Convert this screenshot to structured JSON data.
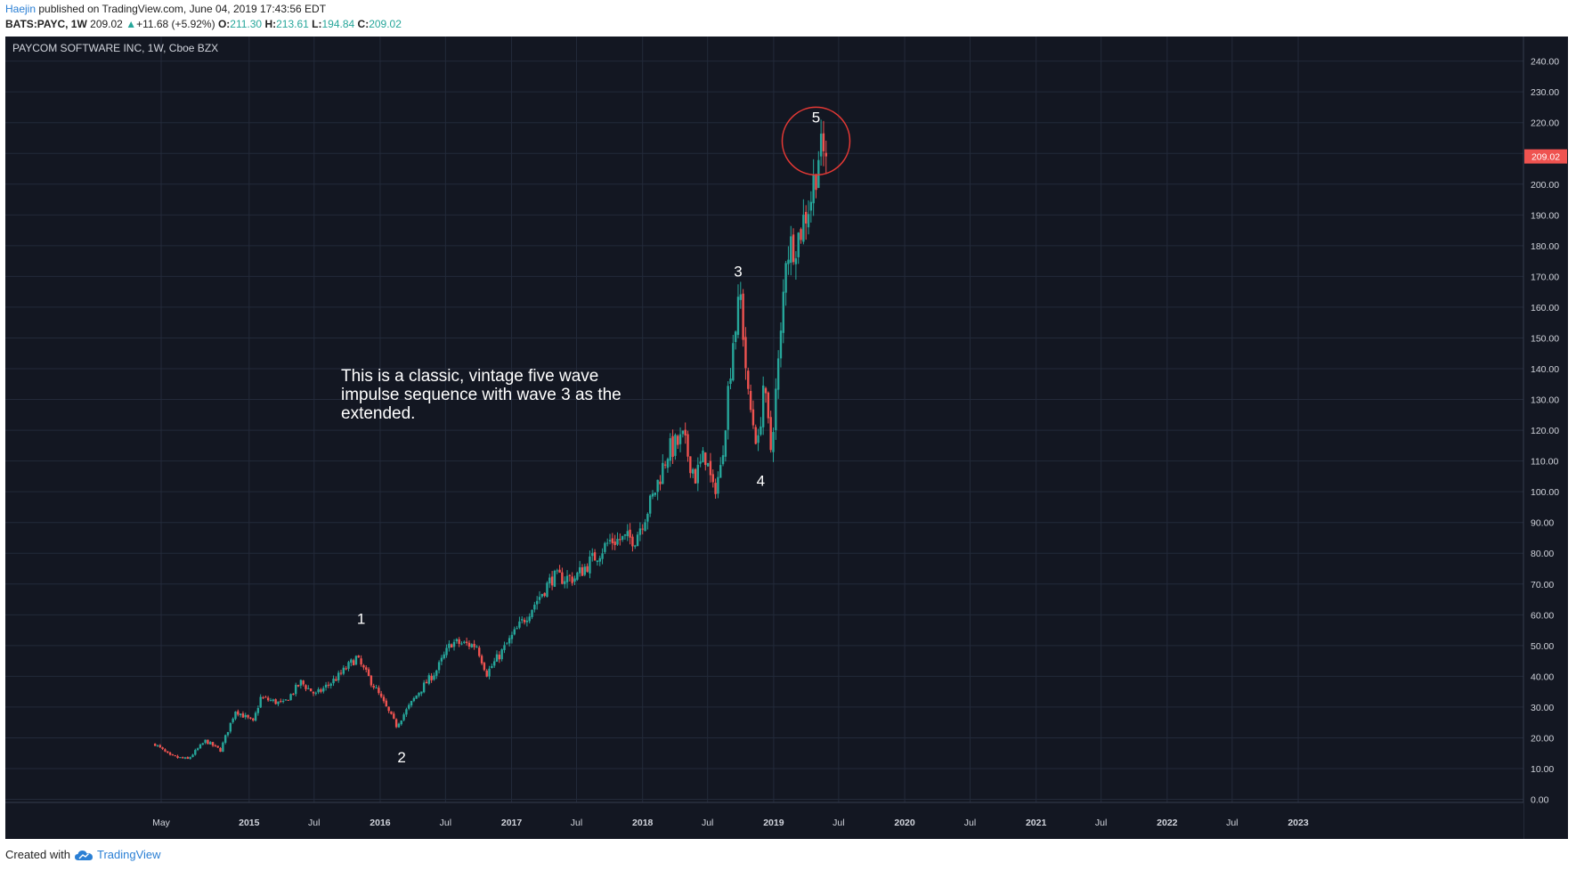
{
  "header": {
    "author": "Haejin",
    "published_text": "published on TradingView.com, June 04, 2019 17:43:56 EDT",
    "symbol": "BATS:PAYC, 1W",
    "last": "209.02",
    "change": "+11.68 (+5.92%)",
    "open_label": "O:",
    "open": "211.30",
    "high_label": "H:",
    "high": "213.61",
    "low_label": "L:",
    "low": "194.84",
    "close_label": "C:",
    "close": "209.02"
  },
  "footer": {
    "created_with": "Created with",
    "brand": "TradingView"
  },
  "colors": {
    "background": "#131722",
    "grid": "#232a3a",
    "up": "#26a69a",
    "down": "#ef5350",
    "text": "#d1d4dc",
    "circle": "#e53935"
  },
  "chart_data": {
    "type": "candlestick",
    "title": "PAYCOM SOFTWARE INC, 1W, Cboe BZX",
    "ylim": [
      -1,
      248
    ],
    "y_ticks": [
      0,
      10,
      20,
      30,
      40,
      50,
      60,
      70,
      80,
      90,
      100,
      110,
      120,
      130,
      140,
      150,
      160,
      170,
      180,
      190,
      200,
      210,
      220,
      230,
      240
    ],
    "y_tick_labels": [
      "0.00",
      "10.00",
      "20.00",
      "30.00",
      "40.00",
      "50.00",
      "60.00",
      "70.00",
      "80.00",
      "90.00",
      "100.00",
      "110.00",
      "120.00",
      "130.00",
      "140.00",
      "150.00",
      "160.00",
      "170.00",
      "180.00",
      "190.00",
      "200.00",
      "210.00",
      "220.00",
      "230.00",
      "240.00"
    ],
    "x_ticks": [
      {
        "label": "May",
        "date": "2014-05-01"
      },
      {
        "label": "2015",
        "date": "2015-01-01"
      },
      {
        "label": "Jul",
        "date": "2015-07-01"
      },
      {
        "label": "2016",
        "date": "2016-01-01"
      },
      {
        "label": "Jul",
        "date": "2016-07-01"
      },
      {
        "label": "2017",
        "date": "2017-01-01"
      },
      {
        "label": "Jul",
        "date": "2017-07-01"
      },
      {
        "label": "2018",
        "date": "2018-01-01"
      },
      {
        "label": "Jul",
        "date": "2018-07-01"
      },
      {
        "label": "2019",
        "date": "2019-01-01"
      },
      {
        "label": "Jul",
        "date": "2019-07-01"
      },
      {
        "label": "2020",
        "date": "2020-01-01"
      },
      {
        "label": "Jul",
        "date": "2020-07-01"
      },
      {
        "label": "2021",
        "date": "2021-01-01"
      },
      {
        "label": "Jul",
        "date": "2021-07-01"
      },
      {
        "label": "2022",
        "date": "2022-01-01"
      },
      {
        "label": "Jul",
        "date": "2022-07-01"
      },
      {
        "label": "2023",
        "date": "2023-01-01"
      }
    ],
    "last_price_label": "209.02",
    "last_price": 209.02,
    "price_path": [
      [
        "2014-04-14",
        18
      ],
      [
        "2014-05-26",
        14
      ],
      [
        "2014-07-14",
        13
      ],
      [
        "2014-09-01",
        19
      ],
      [
        "2014-10-13",
        16
      ],
      [
        "2014-11-24",
        29
      ],
      [
        "2015-01-12",
        25
      ],
      [
        "2015-02-02",
        33
      ],
      [
        "2015-04-06",
        31
      ],
      [
        "2015-05-25",
        38
      ],
      [
        "2015-07-06",
        34
      ],
      [
        "2015-09-07",
        40
      ],
      [
        "2015-10-26",
        46
      ],
      [
        "2015-12-14",
        37
      ],
      [
        "2016-02-15",
        24
      ],
      [
        "2016-04-18",
        35
      ],
      [
        "2016-06-06",
        42
      ],
      [
        "2016-07-18",
        51
      ],
      [
        "2016-09-26",
        50
      ],
      [
        "2016-10-24",
        41
      ],
      [
        "2016-12-05",
        48
      ],
      [
        "2017-02-13",
        60
      ],
      [
        "2017-04-24",
        72
      ],
      [
        "2017-06-26",
        72
      ],
      [
        "2017-10-02",
        84
      ],
      [
        "2017-12-11",
        85
      ],
      [
        "2018-01-29",
        98
      ],
      [
        "2018-03-12",
        113
      ],
      [
        "2018-04-23",
        117
      ],
      [
        "2018-05-28",
        105
      ],
      [
        "2018-06-25",
        112
      ],
      [
        "2018-07-16",
        100
      ],
      [
        "2018-08-06",
        107
      ],
      [
        "2018-09-10",
        150
      ],
      [
        "2018-10-01",
        163
      ],
      [
        "2018-10-22",
        130
      ],
      [
        "2018-11-19",
        115
      ],
      [
        "2018-12-03",
        135
      ],
      [
        "2018-12-24",
        114
      ],
      [
        "2019-01-21",
        150
      ],
      [
        "2019-02-04",
        178
      ],
      [
        "2019-03-11",
        183
      ],
      [
        "2019-04-15",
        196
      ],
      [
        "2019-05-06",
        210
      ],
      [
        "2019-05-27",
        209.02
      ]
    ],
    "wave_labels": [
      {
        "label": "1",
        "date": "2015-11-09",
        "value": 57
      },
      {
        "label": "2",
        "date": "2016-03-01",
        "value": 12
      },
      {
        "label": "3",
        "date": "2018-09-24",
        "value": 170
      },
      {
        "label": "4",
        "date": "2018-11-26",
        "value": 102
      },
      {
        "label": "5",
        "date": "2019-04-29",
        "value": 220
      }
    ],
    "annotation": "This is a classic, vintage five wave impulse sequence with wave 3 as the extended.",
    "highlight_circle": {
      "date": "2019-04-29",
      "value": 214
    }
  }
}
